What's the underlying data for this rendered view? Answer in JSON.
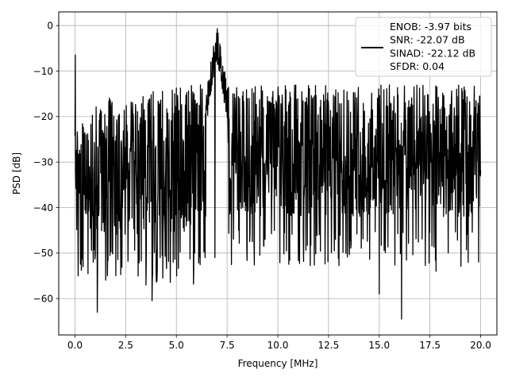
{
  "chart_data": {
    "type": "line",
    "xlabel": "Frequency [MHz]",
    "ylabel": "PSD [dB]",
    "xlim": [
      -0.8,
      20.8
    ],
    "ylim": [
      -68,
      3
    ],
    "xticks": [
      0.0,
      2.5,
      5.0,
      7.5,
      10.0,
      12.5,
      15.0,
      17.5,
      20.0
    ],
    "xtick_labels": [
      "0.0",
      "2.5",
      "5.0",
      "7.5",
      "10.0",
      "12.5",
      "15.0",
      "17.5",
      "20.0"
    ],
    "yticks": [
      0,
      -10,
      -20,
      -30,
      -40,
      -50,
      -60
    ],
    "ytick_labels": [
      "0",
      "−10",
      "−20",
      "−30",
      "−40",
      "−50",
      "−60"
    ],
    "grid": true,
    "legend_position": "top-right",
    "series_color": "#000000",
    "series": [
      {
        "name": "ENOB: -3.97 bits\nSNR: -22.07 dB\nSINAD: -22.12 dB\nSFDR: 0.04",
        "legend_lines": [
          "ENOB: -3.97 bits",
          "SNR: -22.07 dB",
          "SINAD: -22.12 dB",
          "SFDR: 0.04"
        ],
        "x_start": 0,
        "x_end": 20,
        "peak_freq": 7.0,
        "peak_db": -0.1,
        "dc_db": -6.5,
        "noise_upper_db": -15,
        "noise_lower_db": -42,
        "sample_minima": [
          [
            0.4,
            -53
          ],
          [
            0.9,
            -52
          ],
          [
            1.1,
            -63
          ],
          [
            1.6,
            -55
          ],
          [
            3.5,
            -57
          ],
          [
            3.8,
            -60.5
          ],
          [
            4.2,
            -51
          ],
          [
            5.9,
            -50
          ],
          [
            6.9,
            -51
          ],
          [
            15.0,
            -59
          ],
          [
            16.1,
            -64.5
          ],
          [
            17.8,
            -54
          ],
          [
            19.9,
            -52
          ]
        ]
      }
    ]
  }
}
